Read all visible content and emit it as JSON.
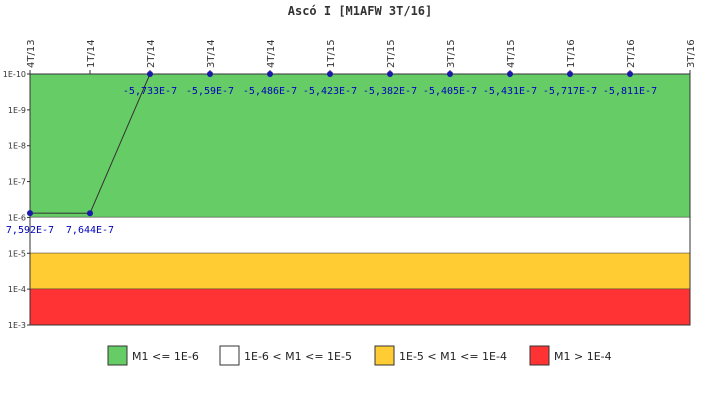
{
  "chart_data": {
    "type": "line",
    "title": "Ascó I [M1AFW 3T/16]",
    "x": [
      "4T/13",
      "1T/14",
      "2T/14",
      "3T/14",
      "4T/14",
      "1T/15",
      "2T/15",
      "3T/15",
      "4T/15",
      "1T/16",
      "2T/16",
      "3T/16"
    ],
    "series": [
      {
        "values": [
          7.592e-07,
          7.644e-07,
          1e-10,
          1e-10,
          1e-10,
          1e-10,
          1e-10,
          1e-10,
          1e-10,
          1e-10,
          1e-10,
          null
        ],
        "labels": [
          "7,592E-7",
          "7,644E-7",
          "-5,733E-7",
          "-5,59E-7",
          "-5,486E-7",
          "-5,423E-7",
          "-5,382E-7",
          "-5,405E-7",
          "-5,431E-7",
          "-5,717E-7",
          "-5,811E-7",
          null
        ],
        "color": "#1a1aa6"
      }
    ],
    "y_scale": "log",
    "y_inverted": true,
    "ylim": [
      0.001,
      1e-10
    ],
    "y_ticks": [
      "1E-10",
      "1E-9",
      "1E-8",
      "1E-7",
      "1E-6",
      "1E-5",
      "1E-4",
      "1E-3"
    ],
    "bands": [
      {
        "from": 1e-10,
        "to": 1e-06,
        "color": "#66cc66",
        "label": "M1 <= 1E-6"
      },
      {
        "from": 1e-06,
        "to": 1e-05,
        "color": "#ffffff",
        "label": "1E-6 < M1 <= 1E-5"
      },
      {
        "from": 1e-05,
        "to": 0.0001,
        "color": "#ffcc33",
        "label": "1E-5 < M1 <= 1E-4"
      },
      {
        "from": 0.0001,
        "to": 0.001,
        "color": "#ff3333",
        "label": "M1 > 1E-4"
      }
    ],
    "legend_position": "bottom",
    "grid": false
  }
}
